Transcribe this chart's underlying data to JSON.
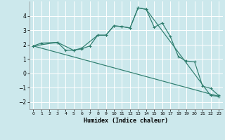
{
  "xlabel": "Humidex (Indice chaleur)",
  "bg_color": "#cce8ec",
  "grid_color": "#ffffff",
  "line_color": "#2e7d6e",
  "xlim": [
    -0.5,
    23.5
  ],
  "ylim": [
    -2.5,
    5.0
  ],
  "yticks": [
    -2,
    -1,
    0,
    1,
    2,
    3,
    4
  ],
  "xticks": [
    0,
    1,
    2,
    3,
    4,
    5,
    6,
    7,
    8,
    9,
    10,
    11,
    12,
    13,
    14,
    15,
    16,
    17,
    18,
    19,
    20,
    21,
    22,
    23
  ],
  "series1_x": [
    0,
    1,
    3,
    4,
    5,
    6,
    7,
    8,
    9,
    10,
    11,
    12,
    13,
    14,
    15,
    16,
    17,
    18,
    19,
    20,
    21,
    22,
    23
  ],
  "series1_y": [
    1.9,
    2.1,
    2.15,
    1.6,
    1.6,
    1.7,
    1.9,
    2.65,
    2.65,
    3.3,
    3.25,
    3.15,
    4.55,
    4.45,
    3.2,
    3.5,
    2.55,
    1.15,
    0.85,
    0.8,
    -0.9,
    -1.05,
    -1.55
  ],
  "series2_x": [
    0,
    3,
    5,
    6,
    8,
    9,
    10,
    11,
    12,
    13,
    14,
    22,
    23
  ],
  "series2_y": [
    1.9,
    2.15,
    1.6,
    1.75,
    2.65,
    2.65,
    3.3,
    3.25,
    3.15,
    4.55,
    4.45,
    -1.55,
    -1.6
  ],
  "series3_x": [
    0,
    23
  ],
  "series3_y": [
    1.9,
    -1.6
  ]
}
